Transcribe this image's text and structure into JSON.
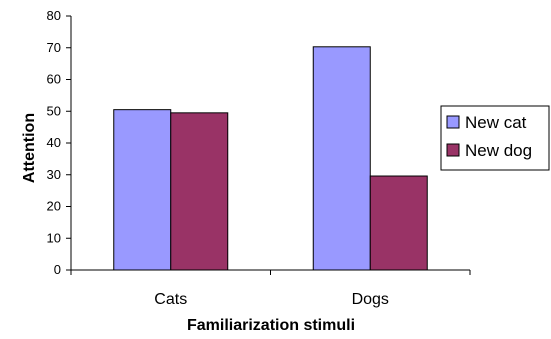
{
  "chart_data": {
    "type": "bar",
    "categories": [
      "Cats",
      "Dogs"
    ],
    "series": [
      {
        "name": "New cat",
        "values": [
          50.5,
          70.3
        ],
        "color": "#9999ff"
      },
      {
        "name": "New dog",
        "values": [
          49.5,
          29.6
        ],
        "color": "#993366"
      }
    ],
    "xlabel": "Familiarization stimuli",
    "ylabel": "Attention",
    "ylim": [
      0,
      80
    ],
    "yticks": [
      0,
      10,
      20,
      30,
      40,
      50,
      60,
      70,
      80
    ],
    "grid": false,
    "legend": "right"
  }
}
